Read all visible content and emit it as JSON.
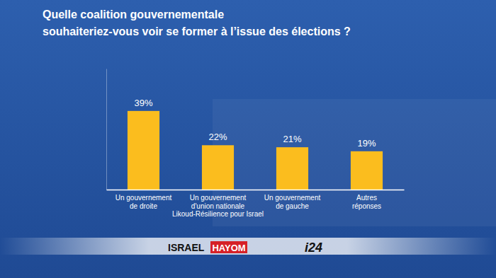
{
  "chart_data": {
    "type": "bar",
    "title": "Quelle coalition gouvernementale\nsouhaiteriez-vous voir se former à l’issue des élections ?",
    "categories": [
      "Un gouvernement\nde droite",
      "Un gouvernement\nd'union nationale\nLikoud-Résilience pour Israel",
      "Un gouvernement\nde gauche",
      "Autres\nréponses"
    ],
    "values": [
      39,
      22,
      21,
      19
    ],
    "value_labels": [
      "39%",
      "22%",
      "21%",
      "19%"
    ],
    "data_labels": true,
    "color": "#fbbd1e",
    "ylim": [
      0,
      60
    ],
    "yticks": [
      0
    ],
    "grid": false,
    "tick_labels": "x",
    "annotations": [
      "ISRAEL",
      "HAYOM",
      "i24"
    ]
  }
}
